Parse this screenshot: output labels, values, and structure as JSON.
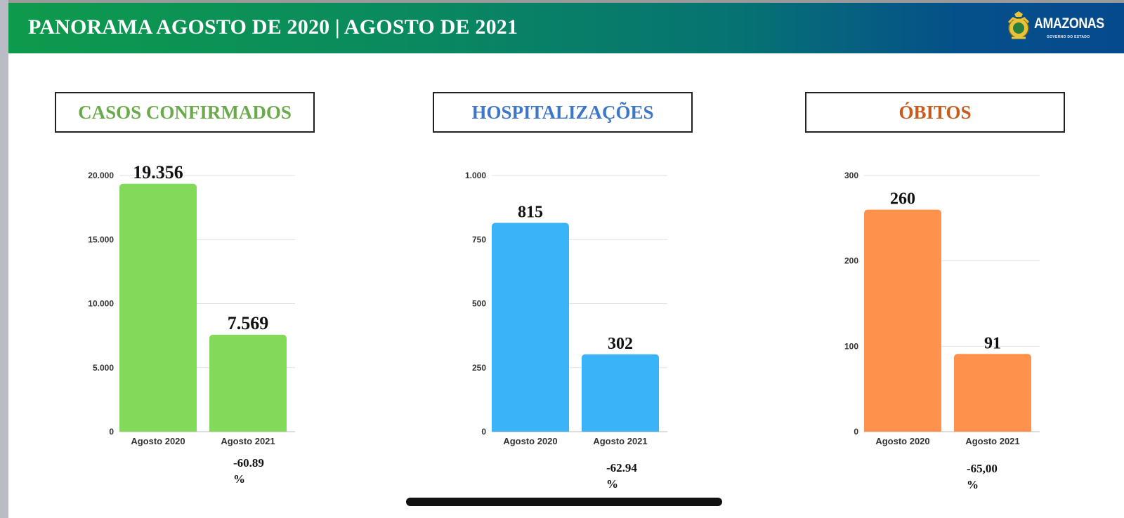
{
  "header": {
    "title": "PANORAMA AGOSTO DE 2020 | AGOSTO DE 2021"
  },
  "logo": {
    "text": "AMAZONAS",
    "subtext": "GOVERNO DO ESTADO",
    "icon": "amazonas-coat-of-arms-icon"
  },
  "colors": {
    "casos": "#82d95a",
    "hospital": "#3bb3f9",
    "obitos": "#fe914b",
    "casos_title": "#6aaa4a",
    "hospital_title": "#3e77c8",
    "obitos_title": "#c65d1e"
  },
  "chart_data": [
    {
      "type": "bar",
      "title": "CASOS CONFIRMADOS",
      "categories": [
        "Agosto 2020",
        "Agosto 2021"
      ],
      "values": [
        19356,
        7569
      ],
      "value_labels": [
        "19.356",
        "7.569"
      ],
      "ylim": [
        0,
        20000
      ],
      "yticks": [
        0,
        5000,
        10000,
        15000,
        20000
      ],
      "ytick_labels": [
        "0",
        "5.000",
        "10.000",
        "15.000",
        "20.000"
      ],
      "grid": true,
      "change_value": "-60.89",
      "change_unit": "%"
    },
    {
      "type": "bar",
      "title": "HOSPITALIZAÇÕES",
      "categories": [
        "Agosto 2020",
        "Agosto 2021"
      ],
      "values": [
        815,
        302
      ],
      "value_labels": [
        "815",
        "302"
      ],
      "ylim": [
        0,
        1000
      ],
      "yticks": [
        0,
        250,
        500,
        750,
        1000
      ],
      "ytick_labels": [
        "0",
        "250",
        "500",
        "750",
        "1.000"
      ],
      "grid": true,
      "change_value": "-62.94",
      "change_unit": "%"
    },
    {
      "type": "bar",
      "title": "ÓBITOS",
      "categories": [
        "Agosto 2020",
        "Agosto 2021"
      ],
      "values": [
        260,
        91
      ],
      "value_labels": [
        "260",
        "91"
      ],
      "ylim": [
        0,
        300
      ],
      "yticks": [
        0,
        100,
        200,
        300
      ],
      "ytick_labels": [
        "0",
        "100",
        "200",
        "300"
      ],
      "grid": true,
      "change_value": "-65,00",
      "change_unit": "%"
    }
  ]
}
